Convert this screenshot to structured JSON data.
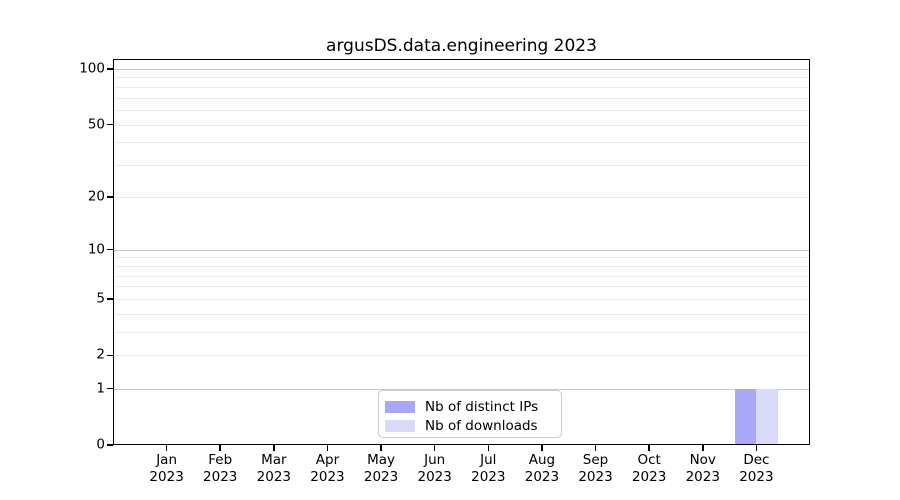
{
  "chart_data": {
    "type": "bar",
    "title": "argusDS.data.engineering 2023",
    "categories": [
      "Jan",
      "Feb",
      "Mar",
      "Apr",
      "May",
      "Jun",
      "Jul",
      "Aug",
      "Sep",
      "Oct",
      "Nov",
      "Dec"
    ],
    "category_year": "2023",
    "series": [
      {
        "name": "Nb of distinct IPs",
        "color": "#a8a8f6",
        "values": [
          0,
          0,
          0,
          0,
          0,
          0,
          0,
          0,
          0,
          0,
          0,
          1
        ]
      },
      {
        "name": "Nb of downloads",
        "color": "#d9d9f8",
        "values": [
          0,
          0,
          0,
          0,
          0,
          0,
          0,
          0,
          0,
          0,
          0,
          1
        ]
      }
    ],
    "yscale": "log1p",
    "ylim": [
      0,
      113
    ],
    "ytick_values": [
      0,
      1,
      2,
      5,
      10,
      20,
      50,
      100
    ],
    "ytick_labels": [
      "0",
      "1",
      "2",
      "5",
      "10",
      "20",
      "50",
      "100"
    ],
    "major_grid_values": [
      1,
      10,
      100
    ],
    "minor_grid_values": [
      2,
      3,
      4,
      5,
      6,
      7,
      8,
      9,
      20,
      30,
      40,
      50,
      60,
      70,
      80,
      90
    ],
    "grid": "both",
    "legend_position": "lower center",
    "colors": {
      "axis": "#000000",
      "text": "#000000",
      "major_grid": "#c8c8c8",
      "minor_grid": "#ececec",
      "background": "#ffffff"
    }
  }
}
